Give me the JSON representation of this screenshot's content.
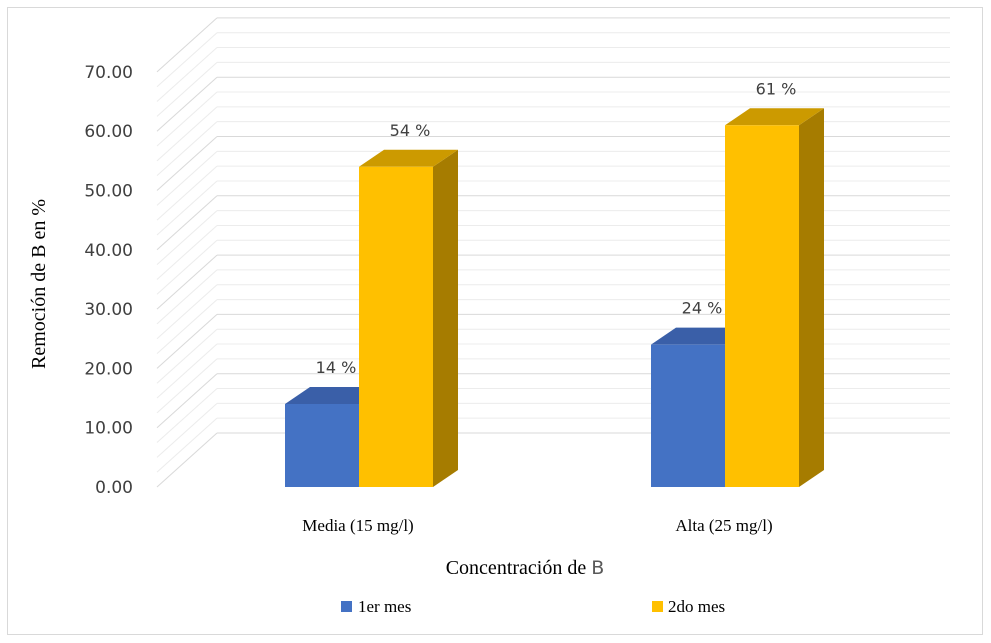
{
  "chart_data": {
    "type": "bar",
    "style": "3d-clustered-column",
    "categories": [
      "Media (15 mg/l)",
      "Alta (25 mg/l)"
    ],
    "series": [
      {
        "name": "1er mes",
        "values": [
          14,
          24
        ],
        "labels": [
          "14 %",
          "24 %"
        ],
        "color": "#4472c4",
        "side_color": "#2f528f",
        "top_color": "#3a5fa8"
      },
      {
        "name": "2do mes",
        "values": [
          54,
          61
        ],
        "labels": [
          "54 %",
          "61  %"
        ],
        "color": "#ffc000",
        "side_color": "#a67c00",
        "top_color": "#cc9a00"
      }
    ],
    "ylim": [
      0,
      70
    ],
    "yticks": [
      "0.00",
      "10.00",
      "20.00",
      "30.00",
      "40.00",
      "50.00",
      "60.00",
      "70.00"
    ],
    "ylabel": "Remoción de B en %",
    "xlabel_main": "Concentración de ",
    "xlabel_symbol": "B",
    "grid": true,
    "legend_position": "bottom"
  }
}
